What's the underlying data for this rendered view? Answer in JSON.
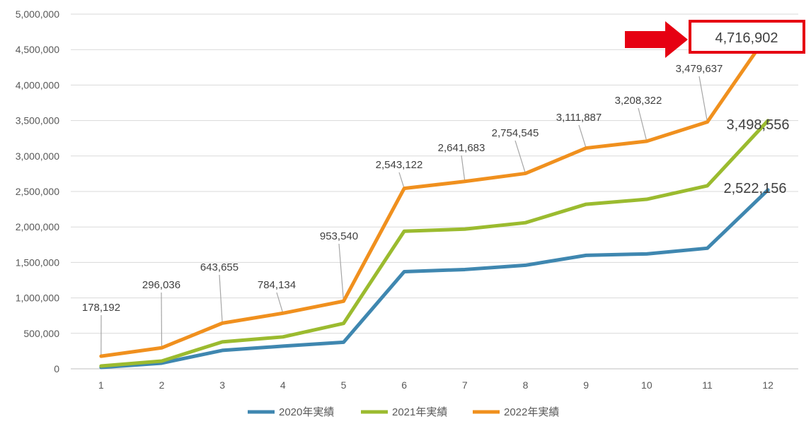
{
  "chart_data": {
    "type": "line",
    "title": "",
    "xlabel": "",
    "ylabel": "",
    "x": [
      1,
      2,
      3,
      4,
      5,
      6,
      7,
      8,
      9,
      10,
      11,
      12
    ],
    "ylim": [
      0,
      5000000
    ],
    "yticks": [
      0,
      500000,
      1000000,
      1500000,
      2000000,
      2500000,
      3000000,
      3500000,
      4000000,
      4500000,
      5000000
    ],
    "ytick_labels": [
      "0",
      "500,000",
      "1,000,000",
      "1,500,000",
      "2,000,000",
      "2,500,000",
      "3,000,000",
      "3,500,000",
      "4,000,000",
      "4,500,000",
      "5,000,000"
    ],
    "grid": true,
    "legend_position": "bottom",
    "series": [
      {
        "name": "2020年実績",
        "color": "#3f87b0",
        "values": [
          20000,
          80000,
          260000,
          320000,
          375000,
          1370000,
          1400000,
          1460000,
          1600000,
          1620000,
          1700000,
          2522156
        ],
        "end_label": "2,522,156"
      },
      {
        "name": "2021年実績",
        "color": "#9bbb2f",
        "values": [
          40000,
          110000,
          380000,
          450000,
          640000,
          1940000,
          1970000,
          2060000,
          2320000,
          2390000,
          2580000,
          3498556
        ],
        "end_label": "3,498,556"
      },
      {
        "name": "2022年実績",
        "color": "#f0901e",
        "values": [
          178192,
          296036,
          643655,
          784134,
          953540,
          2543122,
          2641683,
          2754545,
          3111887,
          3208322,
          3479637,
          4716902
        ],
        "data_labels": [
          "178,192",
          "296,036",
          "643,655",
          "784,134",
          "953,540",
          "2,543,122",
          "2,641,683",
          "2,754,545",
          "3,111,887",
          "3,208,322",
          "3,479,637"
        ],
        "end_label": "4,716,902"
      }
    ],
    "annotation": {
      "highlight": "4,716,902",
      "box_color": "#e60012",
      "arrow_color": "#e60012"
    }
  }
}
